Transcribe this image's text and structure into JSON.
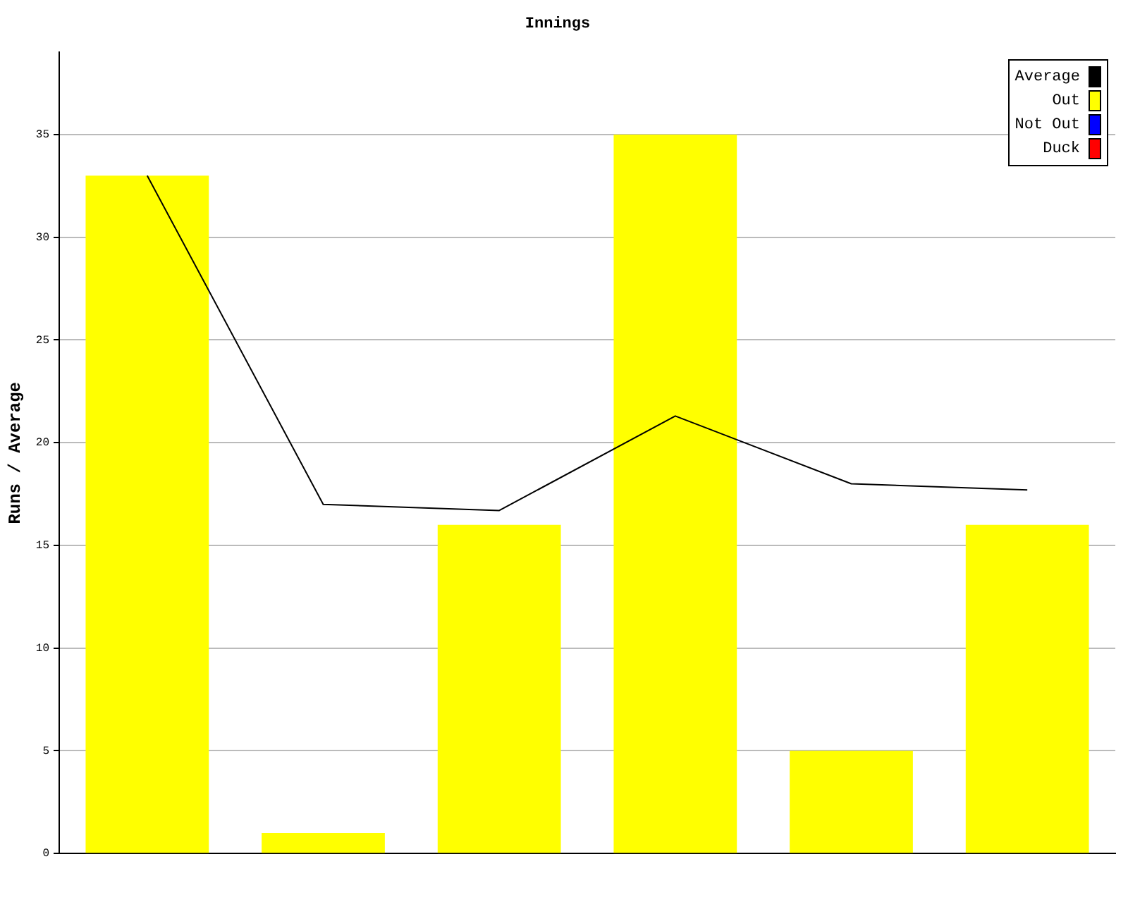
{
  "chart_data": {
    "type": "bar",
    "title": "Innings",
    "ylabel": "Runs / Average",
    "categories": [
      null,
      null,
      null,
      null,
      null,
      null
    ],
    "series": [
      {
        "name": "Average",
        "type": "line",
        "color": "#000000",
        "values": [
          33,
          17,
          16.7,
          21.3,
          18,
          17.7
        ]
      },
      {
        "name": "Out",
        "color": "#ffff00",
        "values": [
          33,
          1,
          16,
          35,
          5,
          16
        ]
      },
      {
        "name": "Not Out",
        "color": "#0000ff",
        "values": [
          null,
          null,
          null,
          null,
          null,
          null
        ]
      },
      {
        "name": "Duck",
        "color": "#ff0000",
        "values": [
          null,
          null,
          null,
          null,
          null,
          null
        ]
      }
    ],
    "ylim": [
      0,
      39
    ],
    "yticks": [
      0,
      5,
      10,
      15,
      20,
      25,
      30,
      35
    ],
    "grid": "y",
    "legend": "top right",
    "marker": "none",
    "stacked": true
  }
}
